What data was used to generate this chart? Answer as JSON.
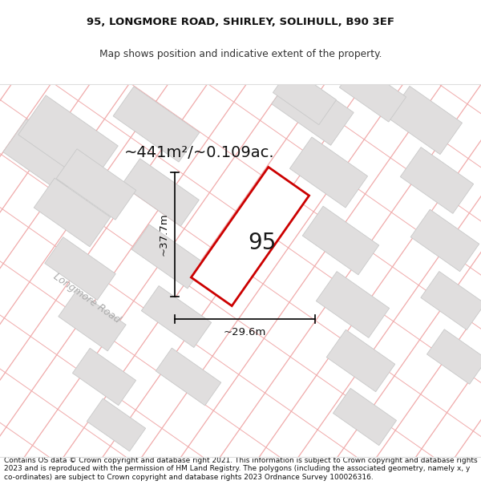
{
  "title_line1": "95, LONGMORE ROAD, SHIRLEY, SOLIHULL, B90 3EF",
  "title_line2": "Map shows position and indicative extent of the property.",
  "footer_text": "Contains OS data © Crown copyright and database right 2021. This information is subject to Crown copyright and database rights 2023 and is reproduced with the permission of HM Land Registry. The polygons (including the associated geometry, namely x, y co-ordinates) are subject to Crown copyright and database rights 2023 Ordnance Survey 100026316.",
  "area_label": "~441m²/~0.109ac.",
  "width_label": "~29.6m",
  "height_label": "~37.7m",
  "property_number": "95",
  "road_label": "Longmore Road",
  "map_bg": "#f7f5f5",
  "plot_fill": "#ffffff",
  "plot_stroke": "#cc0000",
  "parcel_line_color": "#f0aaaa",
  "building_color": "#e0dede",
  "building_edge": "#c8c8c8",
  "title_fontsize": 9.5,
  "footer_fontsize": 6.5,
  "title_bg": "#ffffff",
  "footer_bg": "#ffffff"
}
